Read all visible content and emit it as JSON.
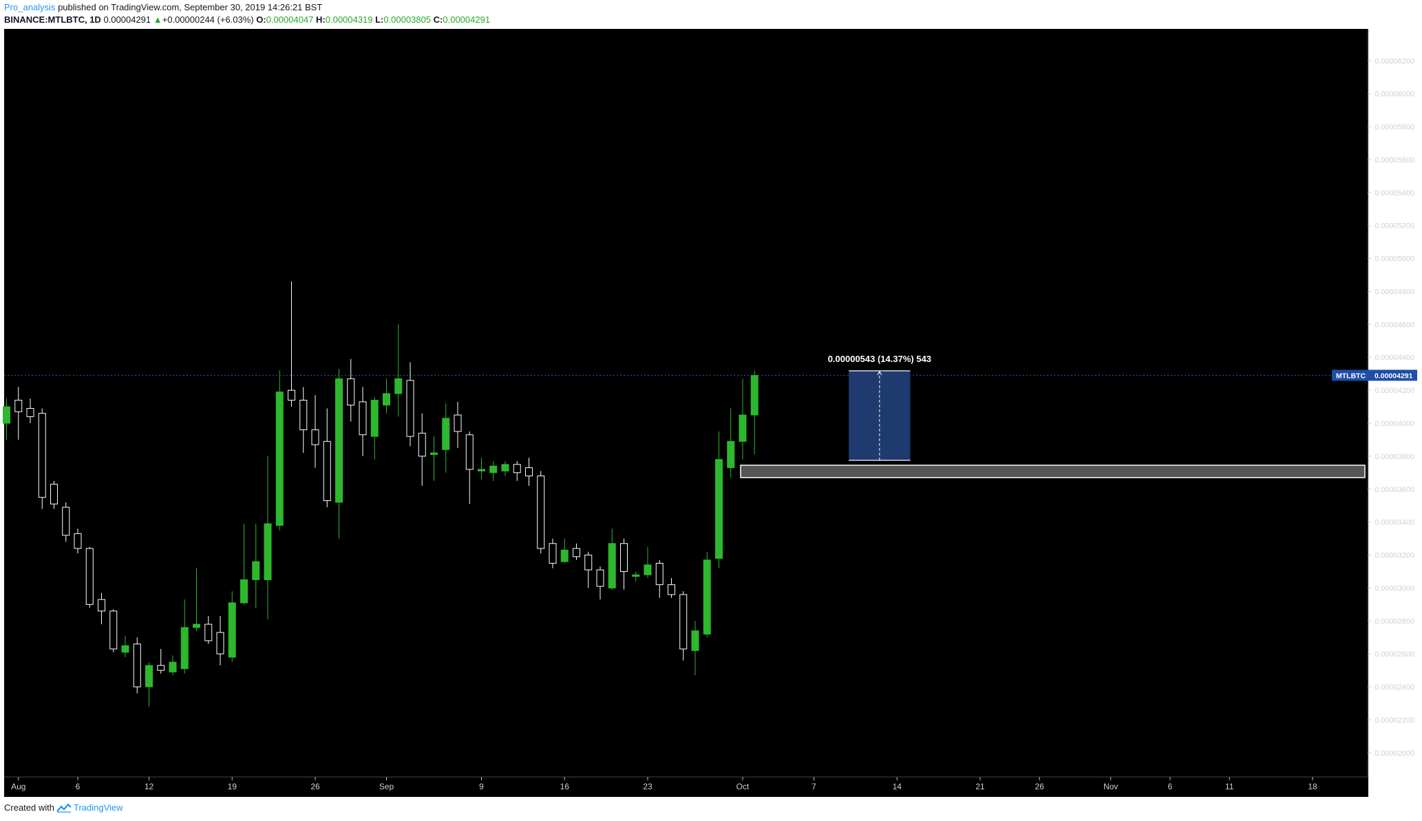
{
  "header": {
    "author": "Pro_analysis",
    "published_text": "published on TradingView.com, September 30, 2019 14:26:21 BST",
    "symbol": "BINANCE:MTLBTC, 1D",
    "last": "0.00004291",
    "change_arrow": "▲",
    "change": "+0.00000244 (+6.03%)",
    "open_label": "O:",
    "open": "0.00004047",
    "high_label": "H:",
    "high": "0.00004319",
    "low_label": "L:",
    "low": "0.00003805",
    "close_label": "C:",
    "close": "0.00004291"
  },
  "footer": {
    "created_with": "Created with",
    "brand": "TradingView"
  },
  "colors": {
    "background": "#000000",
    "up": "#2db82d",
    "down_body": "#000000",
    "down_border": "#ffffff",
    "measure_box": "#1e3a6e",
    "price_tag": "#1e4ea8",
    "support_zone": "#9a9a9a"
  },
  "chart_data": {
    "type": "candlestick",
    "symbol": "MTLBTC",
    "timeframe": "1D",
    "y_ticks": [
      "0.00006200",
      "0.00006000",
      "0.00005800",
      "0.00005600",
      "0.00005400",
      "0.00005200",
      "0.00005000",
      "0.00004800",
      "0.00004600",
      "0.00004400",
      "0.00004200",
      "0.00004000",
      "0.00003800",
      "0.00003600",
      "0.00003400",
      "0.00003200",
      "0.00003000",
      "0.00002800",
      "0.00002600",
      "0.00002400",
      "0.00002200",
      "0.00002000"
    ],
    "x_labels": [
      {
        "index": 1,
        "label": "Aug"
      },
      {
        "index": 6,
        "label": "6"
      },
      {
        "index": 12,
        "label": "12"
      },
      {
        "index": 19,
        "label": "19"
      },
      {
        "index": 26,
        "label": "26"
      },
      {
        "index": 32,
        "label": "Sep"
      },
      {
        "index": 40,
        "label": "9"
      },
      {
        "index": 47,
        "label": "16"
      },
      {
        "index": 54,
        "label": "23"
      },
      {
        "index": 62,
        "label": "Oct"
      },
      {
        "index": 68,
        "label": "7"
      },
      {
        "index": 75,
        "label": "14"
      },
      {
        "index": 82,
        "label": "21"
      },
      {
        "index": 87,
        "label": "26"
      },
      {
        "index": 93,
        "label": "Nov"
      },
      {
        "index": 98,
        "label": "6"
      },
      {
        "index": 103,
        "label": "11"
      },
      {
        "index": 110,
        "label": "18"
      }
    ],
    "candles": [
      {
        "o": 4.0,
        "h": 4.15,
        "l": 3.9,
        "c": 4.1
      },
      {
        "o": 4.14,
        "h": 4.22,
        "l": 3.9,
        "c": 4.07
      },
      {
        "o": 4.09,
        "h": 4.15,
        "l": 4.0,
        "c": 4.04
      },
      {
        "o": 4.06,
        "h": 4.09,
        "l": 3.48,
        "c": 3.55
      },
      {
        "o": 3.63,
        "h": 3.65,
        "l": 3.48,
        "c": 3.51
      },
      {
        "o": 3.49,
        "h": 3.52,
        "l": 3.28,
        "c": 3.32
      },
      {
        "o": 3.33,
        "h": 3.36,
        "l": 3.21,
        "c": 3.24
      },
      {
        "o": 3.24,
        "h": 3.25,
        "l": 2.88,
        "c": 2.9
      },
      {
        "o": 2.93,
        "h": 2.97,
        "l": 2.78,
        "c": 2.86
      },
      {
        "o": 2.86,
        "h": 2.87,
        "l": 2.61,
        "c": 2.63
      },
      {
        "o": 2.61,
        "h": 2.71,
        "l": 2.58,
        "c": 2.65
      },
      {
        "o": 2.66,
        "h": 2.7,
        "l": 2.36,
        "c": 2.4
      },
      {
        "o": 2.4,
        "h": 2.55,
        "l": 2.28,
        "c": 2.53
      },
      {
        "o": 2.53,
        "h": 2.63,
        "l": 2.48,
        "c": 2.5
      },
      {
        "o": 2.49,
        "h": 2.59,
        "l": 2.47,
        "c": 2.55
      },
      {
        "o": 2.51,
        "h": 2.93,
        "l": 2.48,
        "c": 2.76
      },
      {
        "o": 2.76,
        "h": 3.12,
        "l": 2.74,
        "c": 2.78
      },
      {
        "o": 2.78,
        "h": 2.83,
        "l": 2.66,
        "c": 2.68
      },
      {
        "o": 2.73,
        "h": 2.83,
        "l": 2.53,
        "c": 2.6
      },
      {
        "o": 2.58,
        "h": 2.98,
        "l": 2.55,
        "c": 2.91
      },
      {
        "o": 2.91,
        "h": 3.39,
        "l": 2.9,
        "c": 3.05
      },
      {
        "o": 3.05,
        "h": 3.39,
        "l": 2.88,
        "c": 3.16
      },
      {
        "o": 3.05,
        "h": 3.8,
        "l": 2.81,
        "c": 3.39
      },
      {
        "o": 3.38,
        "h": 4.32,
        "l": 3.35,
        "c": 4.19
      },
      {
        "o": 4.2,
        "h": 4.86,
        "l": 4.1,
        "c": 4.14
      },
      {
        "o": 4.14,
        "h": 4.22,
        "l": 3.82,
        "c": 3.96
      },
      {
        "o": 3.96,
        "h": 4.17,
        "l": 3.73,
        "c": 3.87
      },
      {
        "o": 3.89,
        "h": 4.09,
        "l": 3.49,
        "c": 3.53
      },
      {
        "o": 3.52,
        "h": 4.33,
        "l": 3.3,
        "c": 4.27
      },
      {
        "o": 4.27,
        "h": 4.39,
        "l": 4.01,
        "c": 4.11
      },
      {
        "o": 4.13,
        "h": 4.22,
        "l": 3.8,
        "c": 3.93
      },
      {
        "o": 3.92,
        "h": 4.16,
        "l": 3.78,
        "c": 4.14
      },
      {
        "o": 4.11,
        "h": 4.27,
        "l": 4.06,
        "c": 4.18
      },
      {
        "o": 4.18,
        "h": 4.6,
        "l": 4.04,
        "c": 4.27
      },
      {
        "o": 4.26,
        "h": 4.37,
        "l": 3.86,
        "c": 3.92
      },
      {
        "o": 3.94,
        "h": 4.06,
        "l": 3.62,
        "c": 3.8
      },
      {
        "o": 3.81,
        "h": 3.92,
        "l": 3.65,
        "c": 3.82
      },
      {
        "o": 3.84,
        "h": 4.12,
        "l": 3.7,
        "c": 4.03
      },
      {
        "o": 4.05,
        "h": 4.13,
        "l": 3.85,
        "c": 3.95
      },
      {
        "o": 3.93,
        "h": 3.95,
        "l": 3.51,
        "c": 3.72
      },
      {
        "o": 3.71,
        "h": 3.79,
        "l": 3.66,
        "c": 3.72
      },
      {
        "o": 3.7,
        "h": 3.77,
        "l": 3.65,
        "c": 3.74
      },
      {
        "o": 3.71,
        "h": 3.77,
        "l": 3.68,
        "c": 3.75
      },
      {
        "o": 3.75,
        "h": 3.77,
        "l": 3.65,
        "c": 3.7
      },
      {
        "o": 3.73,
        "h": 3.79,
        "l": 3.62,
        "c": 3.68
      },
      {
        "o": 3.68,
        "h": 3.71,
        "l": 3.21,
        "c": 3.24
      },
      {
        "o": 3.27,
        "h": 3.3,
        "l": 3.12,
        "c": 3.15
      },
      {
        "o": 3.16,
        "h": 3.3,
        "l": 3.15,
        "c": 3.23
      },
      {
        "o": 3.24,
        "h": 3.27,
        "l": 3.17,
        "c": 3.19
      },
      {
        "o": 3.2,
        "h": 3.22,
        "l": 3.0,
        "c": 3.11
      },
      {
        "o": 3.11,
        "h": 3.13,
        "l": 2.93,
        "c": 3.01
      },
      {
        "o": 3.0,
        "h": 3.36,
        "l": 2.99,
        "c": 3.27
      },
      {
        "o": 3.27,
        "h": 3.3,
        "l": 2.99,
        "c": 3.1
      },
      {
        "o": 3.07,
        "h": 3.1,
        "l": 3.04,
        "c": 3.08
      },
      {
        "o": 3.08,
        "h": 3.25,
        "l": 3.06,
        "c": 3.14
      },
      {
        "o": 3.15,
        "h": 3.17,
        "l": 2.94,
        "c": 3.02
      },
      {
        "o": 3.02,
        "h": 3.06,
        "l": 2.94,
        "c": 2.96
      },
      {
        "o": 2.96,
        "h": 2.98,
        "l": 2.56,
        "c": 2.63
      },
      {
        "o": 2.62,
        "h": 2.8,
        "l": 2.47,
        "c": 2.74
      },
      {
        "o": 2.72,
        "h": 3.22,
        "l": 2.7,
        "c": 3.17
      },
      {
        "o": 3.18,
        "h": 3.95,
        "l": 3.12,
        "c": 3.78
      },
      {
        "o": 3.73,
        "h": 4.09,
        "l": 3.67,
        "c": 3.89
      },
      {
        "o": 3.89,
        "h": 4.27,
        "l": 3.78,
        "c": 4.05
      },
      {
        "o": 4.05,
        "h": 4.32,
        "l": 3.81,
        "c": 4.29
      }
    ],
    "last_price_label": "MTLBTC",
    "last_price_value": "0.00004291",
    "measure_label": "0.00000543 (14.37%) 543",
    "measure_range": {
      "start_index": 71,
      "end_index": 76,
      "from": 3.775,
      "to": 4.318
    },
    "support_zone": {
      "start_index": 62,
      "top": 3.745,
      "bottom": 3.67
    },
    "price_scale_unit": 1e-05
  }
}
